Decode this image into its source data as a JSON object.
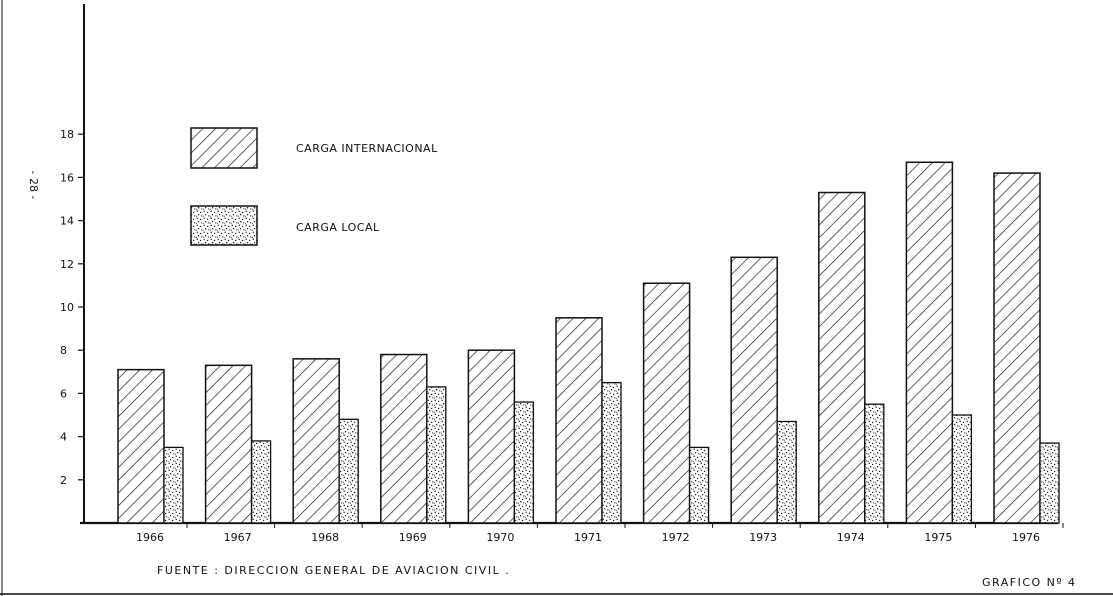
{
  "page_number": "- 28 -",
  "chart_data": {
    "type": "bar",
    "title": "",
    "xlabel": "",
    "ylabel": "",
    "categories": [
      "1966",
      "1967",
      "1968",
      "1969",
      "1970",
      "1971",
      "1972",
      "1973",
      "1974",
      "1975",
      "1976"
    ],
    "series": [
      {
        "name": "CARGA INTERNACIONAL",
        "pattern": "diagonal-hatch",
        "values": [
          7.1,
          7.3,
          7.6,
          7.8,
          8.0,
          9.5,
          11.1,
          12.3,
          15.3,
          16.7,
          16.2
        ]
      },
      {
        "name": "CARGA LOCAL",
        "pattern": "stipple",
        "values": [
          3.5,
          3.8,
          4.8,
          6.3,
          5.6,
          6.5,
          3.5,
          4.7,
          5.5,
          5.0,
          3.7
        ]
      }
    ],
    "y_ticks": [
      2,
      4,
      6,
      8,
      10,
      12,
      14,
      16,
      18
    ],
    "ylim": [
      0,
      21
    ],
    "grid": false,
    "legend_position": "top-left"
  },
  "source_note": "FUENTE : DIRECCION  GENERAL  DE  AVIACION  CIVIL .",
  "figure_label": "GRAFICO Nº 4",
  "colors": {
    "ink": "#111111",
    "paper": "#ffffff"
  }
}
